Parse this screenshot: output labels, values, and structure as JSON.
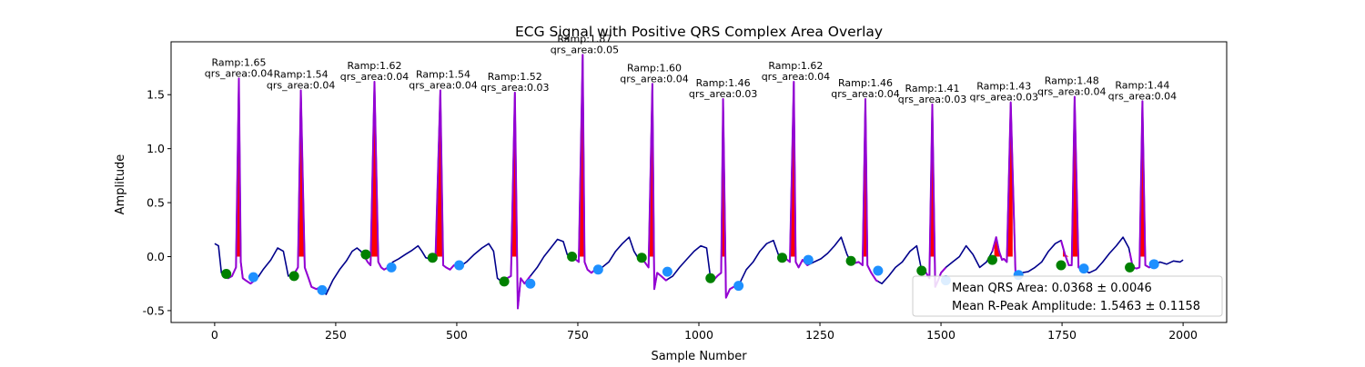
{
  "chart_data": {
    "type": "line",
    "title": "ECG Signal with Positive QRS Complex Area Overlay",
    "xlabel": "Sample Number",
    "ylabel": "Amplitude",
    "xlim": [
      -90,
      2090
    ],
    "ylim": [
      -0.61,
      1.99
    ],
    "xticks": [
      0,
      250,
      500,
      750,
      1000,
      1250,
      1500,
      1750,
      2000
    ],
    "yticks": [
      -0.5,
      0.0,
      0.5,
      1.0,
      1.5
    ],
    "grid": false,
    "colors": {
      "signal": "#00008b",
      "qrs_segment": "#9400d3",
      "qrs_area_fill": "#ff0000",
      "q_onset_marker": "#008000",
      "s_offset_marker": "#1e90ff"
    },
    "series": [
      {
        "role": "ecg-signal",
        "x": [
          0,
          8,
          14,
          20,
          24,
          28,
          36,
          44,
          50,
          54,
          58,
          64,
          74,
          88,
          100,
          116,
          130,
          142,
          152,
          158,
          164,
          172,
          178,
          186,
          194,
          200,
          210,
          220,
          230,
          244,
          258,
          272,
          284,
          294,
          302,
          308,
          316,
          322,
          330,
          338,
          344,
          350,
          358,
          368,
          380,
          394,
          408,
          420,
          428,
          436,
          444,
          450,
          456,
          466,
          472,
          478,
          486,
          494,
          504,
          520,
          536,
          552,
          566,
          576,
          584,
          592,
          598,
          604,
          612,
          620,
          626,
          632,
          640,
          652,
          666,
          680,
          694,
          708,
          720,
          728,
          736,
          744,
          752,
          760,
          764,
          770,
          778,
          786,
          800,
          814,
          828,
          842,
          856,
          866,
          874,
          882,
          888,
          896,
          904,
          908,
          914,
          922,
          932,
          946,
          960,
          976,
          990,
          1004,
          1016,
          1024,
          1032,
          1038,
          1046,
          1050,
          1056,
          1064,
          1072,
          1084,
          1098,
          1112,
          1126,
          1140,
          1154,
          1164,
          1172,
          1180,
          1188,
          1196,
          1200,
          1206,
          1214,
          1224,
          1238,
          1252,
          1266,
          1280,
          1294,
          1306,
          1314,
          1322,
          1330,
          1338,
          1344,
          1348,
          1356,
          1366,
          1378,
          1392,
          1406,
          1420,
          1436,
          1450,
          1460,
          1468,
          1476,
          1482,
          1488,
          1494,
          1500,
          1510,
          1524,
          1538,
          1552,
          1566,
          1580,
          1594,
          1606,
          1614,
          1620,
          1626,
          1630,
          1636,
          1644,
          1654,
          1666,
          1680,
          1694,
          1708,
          1722,
          1736,
          1748,
          1756,
          1764,
          1770,
          1776,
          1784,
          1792,
          1806,
          1820,
          1834,
          1848,
          1862,
          1876,
          1888,
          1896,
          1904,
          1910,
          1916,
          1922,
          1930,
          1940,
          1952,
          1966,
          1980,
          1994,
          2000
        ],
        "y": [
          0.12,
          0.1,
          -0.15,
          -0.18,
          -0.17,
          -0.2,
          -0.18,
          -0.1,
          1.65,
          -0.05,
          -0.2,
          -0.22,
          -0.25,
          -0.2,
          -0.12,
          -0.03,
          0.08,
          0.05,
          -0.18,
          -0.17,
          -0.16,
          -0.1,
          1.54,
          -0.1,
          -0.2,
          -0.28,
          -0.3,
          -0.28,
          -0.35,
          -0.22,
          -0.12,
          -0.04,
          0.05,
          0.08,
          0.05,
          0.01,
          -0.05,
          -0.08,
          1.62,
          -0.05,
          -0.1,
          -0.12,
          -0.1,
          -0.05,
          -0.02,
          0.02,
          0.06,
          0.1,
          0.05,
          -0.01,
          -0.02,
          -0.01,
          -0.03,
          1.54,
          -0.08,
          -0.1,
          -0.12,
          -0.08,
          -0.1,
          -0.05,
          0.02,
          0.08,
          0.12,
          0.05,
          -0.2,
          -0.23,
          -0.22,
          -0.2,
          -0.18,
          1.52,
          -0.48,
          -0.2,
          -0.25,
          -0.18,
          -0.1,
          0.0,
          0.08,
          0.16,
          0.14,
          0.02,
          -0.01,
          -0.02,
          -0.05,
          1.87,
          -0.05,
          -0.12,
          -0.15,
          -0.12,
          -0.1,
          -0.05,
          0.05,
          0.12,
          0.18,
          0.05,
          -0.01,
          -0.02,
          -0.05,
          -0.1,
          1.6,
          -0.3,
          -0.15,
          -0.18,
          -0.22,
          -0.18,
          -0.1,
          -0.02,
          0.05,
          0.1,
          0.08,
          -0.2,
          -0.21,
          -0.18,
          -0.15,
          1.46,
          -0.38,
          -0.3,
          -0.28,
          -0.25,
          -0.12,
          -0.05,
          0.05,
          0.12,
          0.15,
          0.02,
          -0.02,
          -0.02,
          -0.05,
          1.62,
          -0.05,
          -0.1,
          -0.03,
          -0.08,
          -0.05,
          -0.02,
          0.03,
          0.1,
          0.18,
          0.02,
          -0.05,
          -0.06,
          -0.05,
          -0.08,
          1.46,
          -0.08,
          -0.15,
          -0.22,
          -0.25,
          -0.18,
          -0.1,
          -0.05,
          0.05,
          0.1,
          -0.13,
          -0.14,
          -0.2,
          1.41,
          -0.28,
          -0.22,
          -0.15,
          -0.1,
          -0.05,
          0.0,
          0.1,
          0.02,
          -0.1,
          -0.05,
          0.05,
          0.18,
          0.05,
          -0.03,
          -0.02,
          -0.05,
          1.43,
          -0.18,
          -0.15,
          -0.14,
          -0.1,
          -0.05,
          0.05,
          0.12,
          0.15,
          0.02,
          -0.08,
          -0.08,
          1.48,
          -0.1,
          -0.12,
          -0.15,
          -0.12,
          -0.05,
          0.03,
          0.1,
          0.18,
          0.08,
          -0.1,
          -0.11,
          -0.1,
          1.44,
          -0.08,
          -0.1,
          -0.08,
          -0.05,
          -0.07,
          -0.04,
          -0.05,
          -0.03
        ]
      }
    ],
    "beats": [
      {
        "r_x": 50,
        "r_amp": 1.65,
        "q_x": 24,
        "q_y": -0.16,
        "s_x": 80,
        "s_y": -0.19,
        "ramp_label": "Ramp:1.65",
        "area_label": "qrs_area:0.04"
      },
      {
        "r_x": 178,
        "r_amp": 1.54,
        "q_x": 164,
        "q_y": -0.18,
        "s_x": 222,
        "s_y": -0.31,
        "ramp_label": "Ramp:1.54",
        "area_label": "qrs_area:0.04"
      },
      {
        "r_x": 330,
        "r_amp": 1.62,
        "q_x": 312,
        "q_y": 0.02,
        "s_x": 365,
        "s_y": -0.1,
        "ramp_label": "Ramp:1.62",
        "area_label": "qrs_area:0.04"
      },
      {
        "r_x": 472,
        "r_amp": 1.54,
        "q_x": 450,
        "q_y": -0.01,
        "s_x": 505,
        "s_y": -0.08,
        "ramp_label": "Ramp:1.54",
        "area_label": "qrs_area:0.04"
      },
      {
        "r_x": 620,
        "r_amp": 1.52,
        "q_x": 598,
        "q_y": -0.23,
        "s_x": 652,
        "s_y": -0.25,
        "ramp_label": "Ramp:1.52",
        "area_label": "qrs_area:0.03"
      },
      {
        "r_x": 764,
        "r_amp": 1.87,
        "q_x": 738,
        "q_y": 0.0,
        "s_x": 792,
        "s_y": -0.12,
        "ramp_label": "Ramp:1.87",
        "area_label": "qrs_area:0.05"
      },
      {
        "r_x": 908,
        "r_amp": 1.6,
        "q_x": 882,
        "q_y": -0.01,
        "s_x": 935,
        "s_y": -0.14,
        "ramp_label": "Ramp:1.60",
        "area_label": "qrs_area:0.04"
      },
      {
        "r_x": 1050,
        "r_amp": 1.46,
        "q_x": 1024,
        "q_y": -0.2,
        "s_x": 1082,
        "s_y": -0.27,
        "ramp_label": "Ramp:1.46",
        "area_label": "qrs_area:0.03"
      },
      {
        "r_x": 1200,
        "r_amp": 1.62,
        "q_x": 1172,
        "q_y": -0.01,
        "s_x": 1226,
        "s_y": -0.03,
        "ramp_label": "Ramp:1.62",
        "area_label": "qrs_area:0.04"
      },
      {
        "r_x": 1344,
        "r_amp": 1.46,
        "q_x": 1314,
        "q_y": -0.04,
        "s_x": 1370,
        "s_y": -0.13,
        "ramp_label": "Ramp:1.46",
        "area_label": "qrs_area:0.04"
      },
      {
        "r_x": 1482,
        "r_amp": 1.41,
        "q_x": 1460,
        "q_y": -0.13,
        "s_x": 1510,
        "s_y": -0.22,
        "ramp_label": "Ramp:1.41",
        "area_label": "qrs_area:0.03"
      },
      {
        "r_x": 1630,
        "r_amp": 1.43,
        "q_x": 1606,
        "q_y": -0.03,
        "s_x": 1660,
        "s_y": -0.17,
        "ramp_label": "Ramp:1.43",
        "area_label": "qrs_area:0.03"
      },
      {
        "r_x": 1770,
        "r_amp": 1.48,
        "q_x": 1748,
        "q_y": -0.08,
        "s_x": 1795,
        "s_y": -0.11,
        "ramp_label": "Ramp:1.48",
        "area_label": "qrs_area:0.04"
      },
      {
        "r_x": 1916,
        "r_amp": 1.44,
        "q_x": 1890,
        "q_y": -0.1,
        "s_x": 1940,
        "s_y": -0.07,
        "ramp_label": "Ramp:1.44",
        "area_label": "qrs_area:0.04"
      }
    ],
    "legend": {
      "placement": "lower-right",
      "entries": [
        "Mean QRS Area: 0.0368 ± 0.0046",
        "Mean R-Peak Amplitude: 1.5463 ± 0.1158"
      ]
    }
  }
}
